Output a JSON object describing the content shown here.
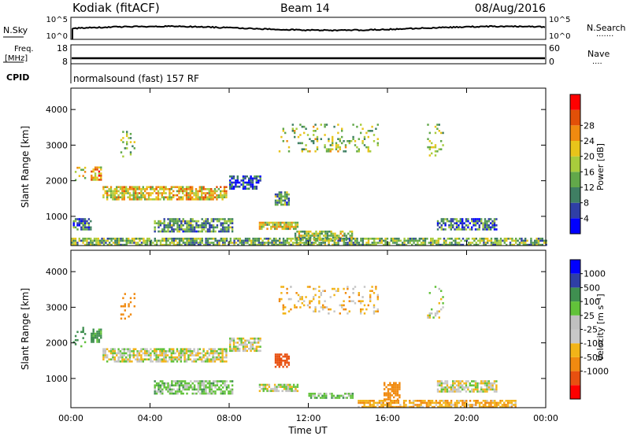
{
  "header": {
    "station": "Kodiak (fitACF)",
    "beam": "Beam 14",
    "date": "08/Aug/2016"
  },
  "top_panels": {
    "nsky": {
      "left_label": "N.Sky",
      "left_ticks": [
        "10^5",
        "10^0"
      ],
      "right_ticks": [
        "10^5",
        "10^0"
      ],
      "right_label": "N.Search",
      "right_marker": "·······"
    },
    "freq": {
      "left_label_1": "Freq.",
      "left_label_2": "[MHz]",
      "left_ticks": [
        "18",
        "8"
      ],
      "right_ticks": [
        "60",
        "0"
      ],
      "right_label": "Nave",
      "right_marker": "····"
    },
    "cpid": {
      "label": "CPID",
      "program": "normalsound (fast) 157 RF"
    }
  },
  "colors": {
    "power_scale": [
      "#0000ff",
      "#2f3fa6",
      "#3f7f63",
      "#62a84a",
      "#a8cc3c",
      "#e8c41a",
      "#f08a10",
      "#e25008",
      "#ff0000"
    ],
    "velocity_scale": [
      "#ff0000",
      "#e85010",
      "#f08a10",
      "#f2b418",
      "#c8c8c8",
      "#c0c0c0",
      "#62c23a",
      "#3f8f50",
      "#2f3fa6",
      "#0000ff"
    ]
  },
  "chart_data": [
    {
      "type": "heatmap",
      "name": "power",
      "ylabel": "Slant Range [km]",
      "yticks": [
        "1000",
        "2000",
        "3000",
        "4000"
      ],
      "ylim": [
        180,
        4600
      ],
      "xlim": [
        0,
        24
      ],
      "colorbar": {
        "label": "Power [dB]",
        "ticks": [
          "4",
          "8",
          "12",
          "16",
          "20",
          "24",
          "28"
        ],
        "range": [
          0,
          30
        ]
      },
      "regions": [
        {
          "t0": 0.1,
          "t1": 0.7,
          "r0": 1900,
          "r1": 2450,
          "v": 16
        },
        {
          "t0": 1.0,
          "t1": 1.5,
          "r0": 2000,
          "r1": 2400,
          "v": 20
        },
        {
          "t0": 1.6,
          "t1": 7.9,
          "r0": 1500,
          "r1": 1850,
          "v": 18
        },
        {
          "t0": 8.0,
          "t1": 9.6,
          "r0": 1800,
          "r1": 2150,
          "v": 6
        },
        {
          "t0": 10.3,
          "t1": 11.0,
          "r0": 1350,
          "r1": 1700,
          "v": 10
        },
        {
          "t0": 0.1,
          "t1": 1.0,
          "r0": 650,
          "r1": 950,
          "v": 8
        },
        {
          "t0": 4.2,
          "t1": 8.2,
          "r0": 550,
          "r1": 950,
          "v": 10
        },
        {
          "t0": 9.5,
          "t1": 11.5,
          "r0": 650,
          "r1": 850,
          "v": 16
        },
        {
          "t0": 11.3,
          "t1": 14.2,
          "r0": 350,
          "r1": 600,
          "v": 14
        },
        {
          "t0": 18.5,
          "t1": 21.5,
          "r0": 650,
          "r1": 950,
          "v": 8
        },
        {
          "t0": 0.0,
          "t1": 24.0,
          "r0": 200,
          "r1": 400,
          "v": 12
        },
        {
          "t0": 2.5,
          "t1": 3.2,
          "r0": 2700,
          "r1": 3400,
          "v": 14
        },
        {
          "t0": 10.5,
          "t1": 15.5,
          "r0": 2800,
          "r1": 3600,
          "v": 14
        },
        {
          "t0": 18.0,
          "t1": 18.8,
          "r0": 2700,
          "r1": 3600,
          "v": 14
        }
      ]
    },
    {
      "type": "heatmap",
      "name": "velocity",
      "ylabel": "Slant Range [km]",
      "xlabel": "Time UT",
      "xticks": [
        "00:00",
        "04:00",
        "08:00",
        "12:00",
        "16:00",
        "20:00",
        "00:00"
      ],
      "xlim": [
        0,
        24
      ],
      "yticks": [
        "1000",
        "2000",
        "3000",
        "4000"
      ],
      "ylim": [
        180,
        4600
      ],
      "colorbar": {
        "label": "Velocity [m s⁻¹]",
        "ticks": [
          "1000",
          "500",
          "100",
          "25",
          "-25",
          "-100",
          "-500",
          "-1000"
        ]
      },
      "regions": [
        {
          "t0": 0.1,
          "t1": 0.7,
          "r0": 1900,
          "r1": 2450,
          "v": 150
        },
        {
          "t0": 1.0,
          "t1": 1.5,
          "r0": 2000,
          "r1": 2400,
          "v": 150
        },
        {
          "t0": 1.6,
          "t1": 7.9,
          "r0": 1500,
          "r1": 1850,
          "v": 0
        },
        {
          "t0": 8.0,
          "t1": 9.6,
          "r0": 1800,
          "r1": 2150,
          "v": 0
        },
        {
          "t0": 10.3,
          "t1": 11.0,
          "r0": 1350,
          "r1": 1700,
          "v": -600
        },
        {
          "t0": 4.2,
          "t1": 8.2,
          "r0": 550,
          "r1": 950,
          "v": 50
        },
        {
          "t0": 9.5,
          "t1": 11.5,
          "r0": 650,
          "r1": 850,
          "v": 0
        },
        {
          "t0": 12.0,
          "t1": 14.2,
          "r0": 450,
          "r1": 600,
          "v": 60
        },
        {
          "t0": 18.5,
          "t1": 21.5,
          "r0": 650,
          "r1": 950,
          "v": 0
        },
        {
          "t0": 14.5,
          "t1": 22.5,
          "r0": 200,
          "r1": 400,
          "v": -80
        },
        {
          "t0": 15.8,
          "t1": 16.6,
          "r0": 400,
          "r1": 900,
          "v": -200
        },
        {
          "t0": 2.5,
          "t1": 3.2,
          "r0": 2700,
          "r1": 3400,
          "v": -200
        },
        {
          "t0": 10.5,
          "t1": 15.5,
          "r0": 2800,
          "r1": 3600,
          "v": -60
        },
        {
          "t0": 18.0,
          "t1": 18.8,
          "r0": 2700,
          "r1": 3600,
          "v": 0
        }
      ]
    }
  ]
}
